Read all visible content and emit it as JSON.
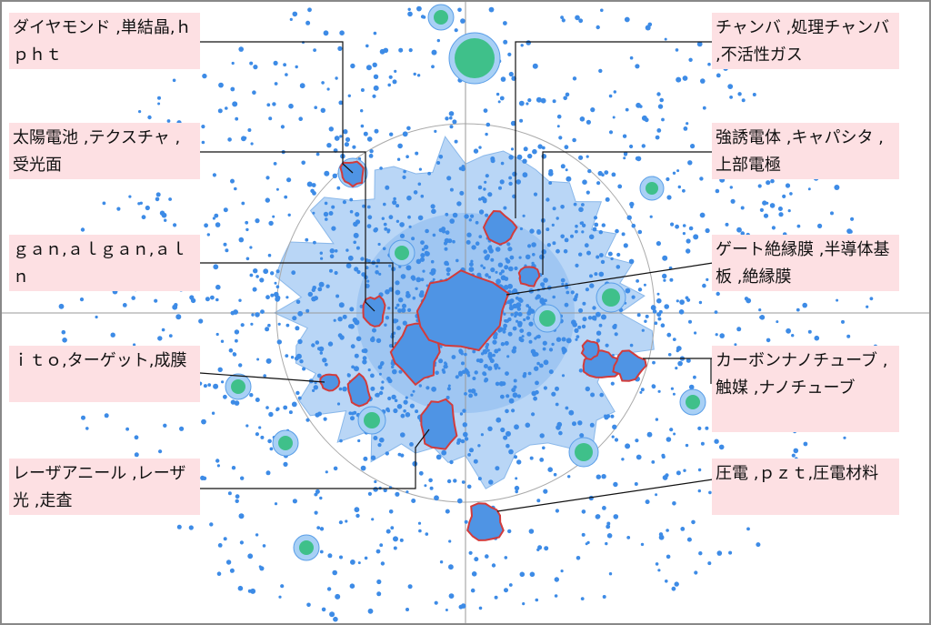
{
  "labels": [
    {
      "text": "ダイヤモンド ,単結晶,ｈｐｈｔ"
    },
    {
      "text": "太陽電池 ,テクスチャ ,受光面"
    },
    {
      "text": "ｇａｎ,ａｌｇａｎ,ａｌｎ"
    },
    {
      "text": "ｉｔｏ,ターゲット,成膜"
    },
    {
      "text": "レーザアニール ,レーザ光 ,走査"
    },
    {
      "text": "チャンバ ,処理チャンバ ,不活性ガス"
    },
    {
      "text": "強誘電体 ,キャパシタ ,上部電極"
    },
    {
      "text": "ゲート絶縁膜 ,半導体基板 ,絶縁膜"
    },
    {
      "text": "カーボンナノチューブ ,触媒 ,ナノチューブ"
    },
    {
      "text": "圧電 ,ｐｚｔ,圧電材料"
    }
  ]
}
